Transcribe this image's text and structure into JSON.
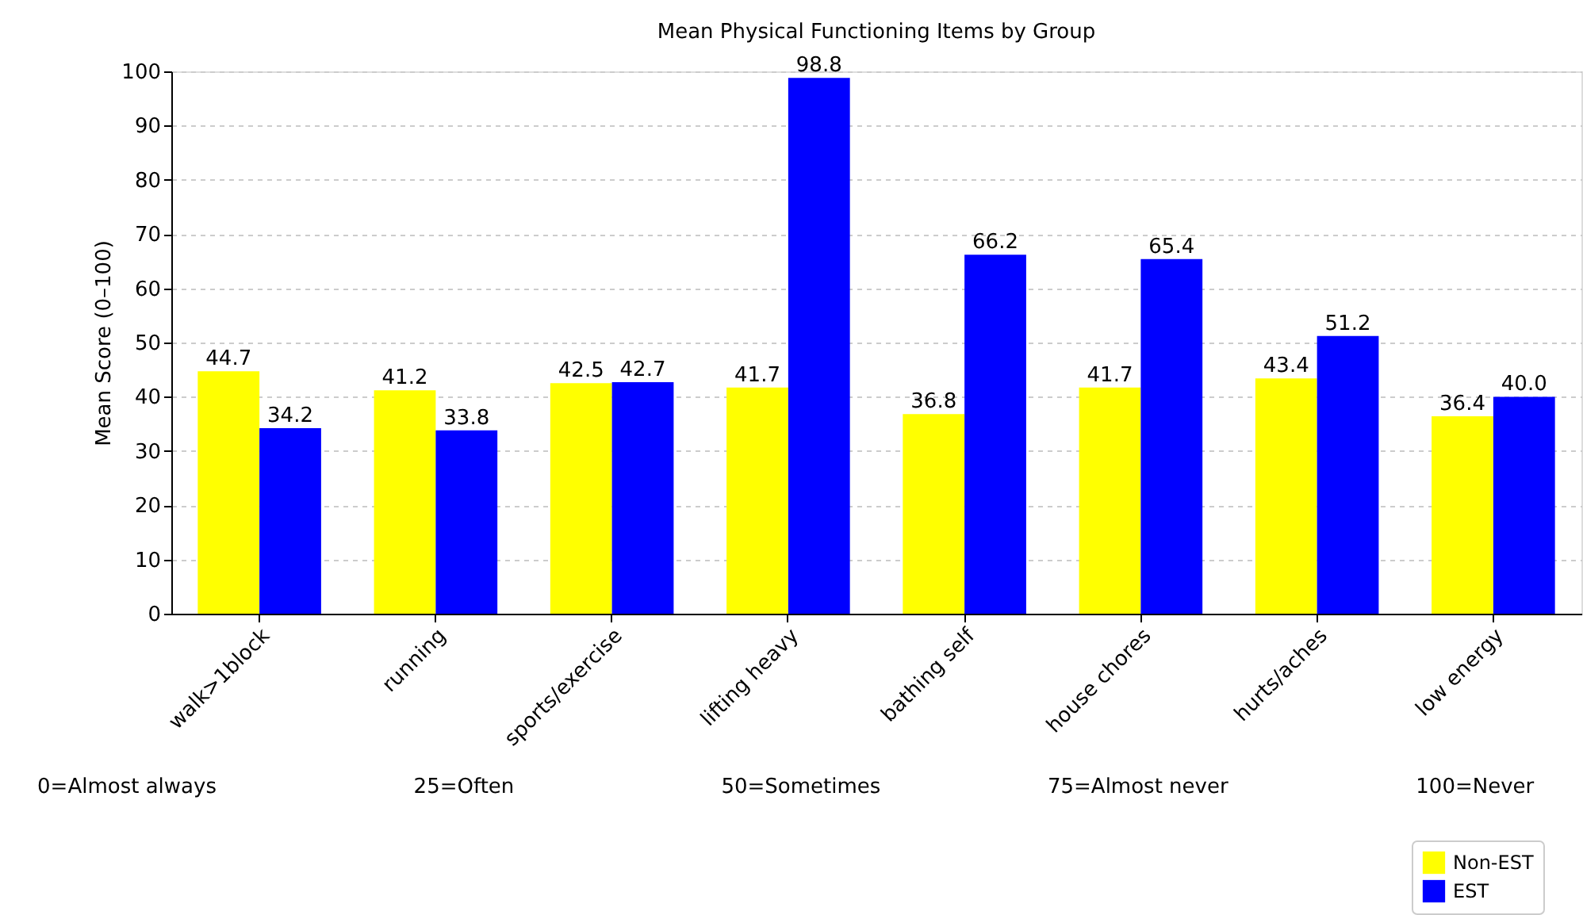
{
  "chart_data": {
    "type": "bar",
    "title": "Mean Physical Functioning Items by Group",
    "ylabel": "Mean Score (0–100)",
    "categories": [
      "walk>1block",
      "running",
      "sports/exercise",
      "lifting heavy",
      "bathing self",
      "house chores",
      "hurts/aches",
      "low energy"
    ],
    "series": [
      {
        "name": "Non-EST",
        "color": "#ffff00",
        "values": [
          44.7,
          41.2,
          42.5,
          41.7,
          36.8,
          41.7,
          43.4,
          36.4
        ],
        "value_labels": [
          "44.7",
          "41.2",
          "42.5",
          "41.7",
          "36.8",
          "41.7",
          "43.4",
          "36.4"
        ]
      },
      {
        "name": "EST",
        "color": "#0000ff",
        "values": [
          34.2,
          33.8,
          42.7,
          98.8,
          66.2,
          65.4,
          51.2,
          40.0
        ],
        "value_labels": [
          "34.2",
          "33.8",
          "42.7",
          "98.8",
          "66.2",
          "65.4",
          "51.2",
          "40.0"
        ]
      }
    ],
    "ylim": [
      0,
      100
    ],
    "yticks": [
      0,
      10,
      20,
      30,
      40,
      50,
      60,
      70,
      80,
      90,
      100
    ],
    "grid": "y",
    "legend": "bottom right",
    "annotations": [
      "0=Almost always",
      "25=Often",
      "50=Sometimes",
      "75=Almost never",
      "100=Never"
    ]
  }
}
